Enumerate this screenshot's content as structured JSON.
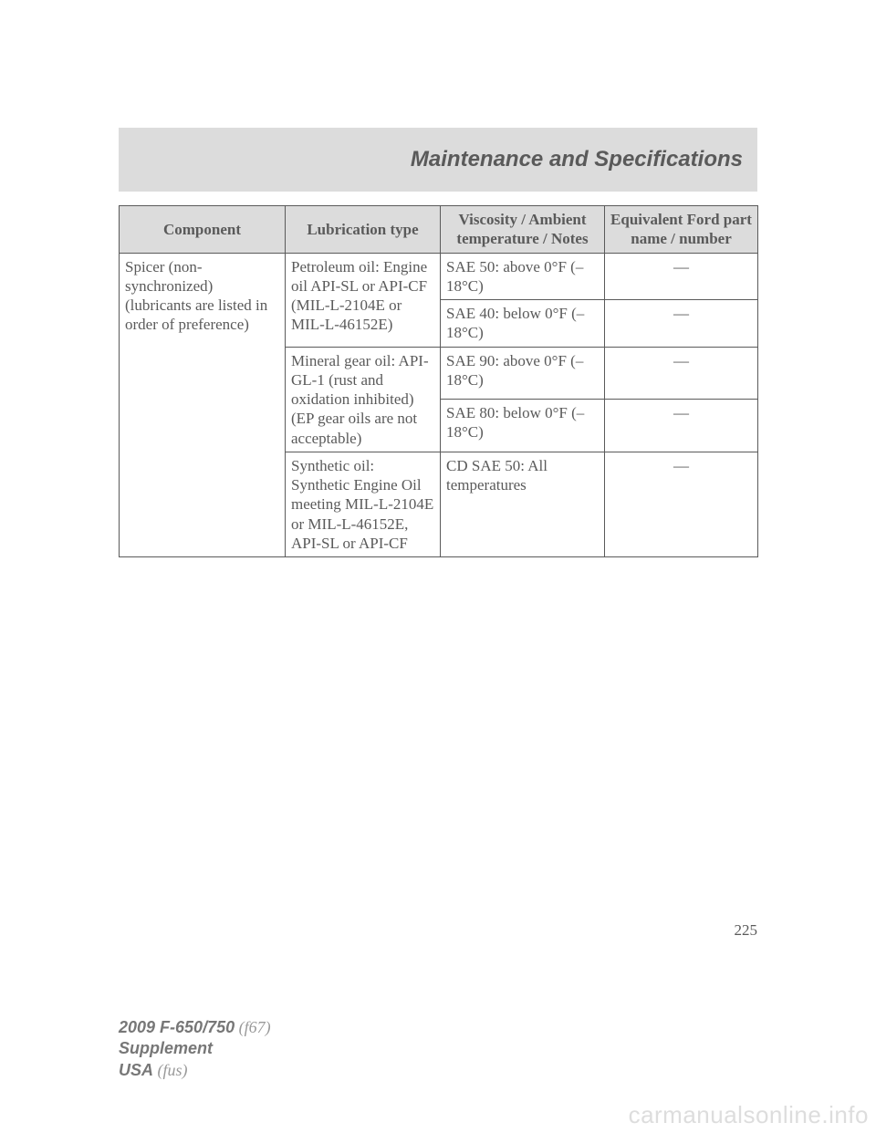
{
  "header": {
    "title": "Maintenance and Specifications"
  },
  "table": {
    "columns": {
      "c1": "Component",
      "c2": "Lubrication type",
      "c3": "Viscosity / Ambient temperature / Notes",
      "c4": "Equivalent Ford part name / number"
    },
    "component": "Spicer (non-synchronized) (lubricants are listed in order of preference)",
    "lub1": "Petroleum oil: Engine oil API-SL or API-CF (MIL-L-2104E or MIL-L-46152E)",
    "lub2": "Mineral gear oil: API-GL-1 (rust and oxidation inhibited) (EP gear oils are not acceptable)",
    "lub3": "Synthetic oil: Synthetic Engine Oil meeting MIL-L-2104E or MIL-L-46152E, API-SL or API-CF",
    "visc1": "SAE 50: above 0°F (–18°C)",
    "visc2": "SAE 40: below 0°F (–18°C)",
    "visc3": "SAE 90: above 0°F (–18°C)",
    "visc4": "SAE 80: below 0°F (–18°C)",
    "visc5": "CD SAE 50: All temperatures",
    "dash": "—"
  },
  "page_number": "225",
  "footer": {
    "model": "2009 F-650/750",
    "model_code": "(f67)",
    "supplement": "Supplement",
    "usa": "USA",
    "usa_code": "(fus)"
  },
  "watermark": "carmanualsonline.info"
}
